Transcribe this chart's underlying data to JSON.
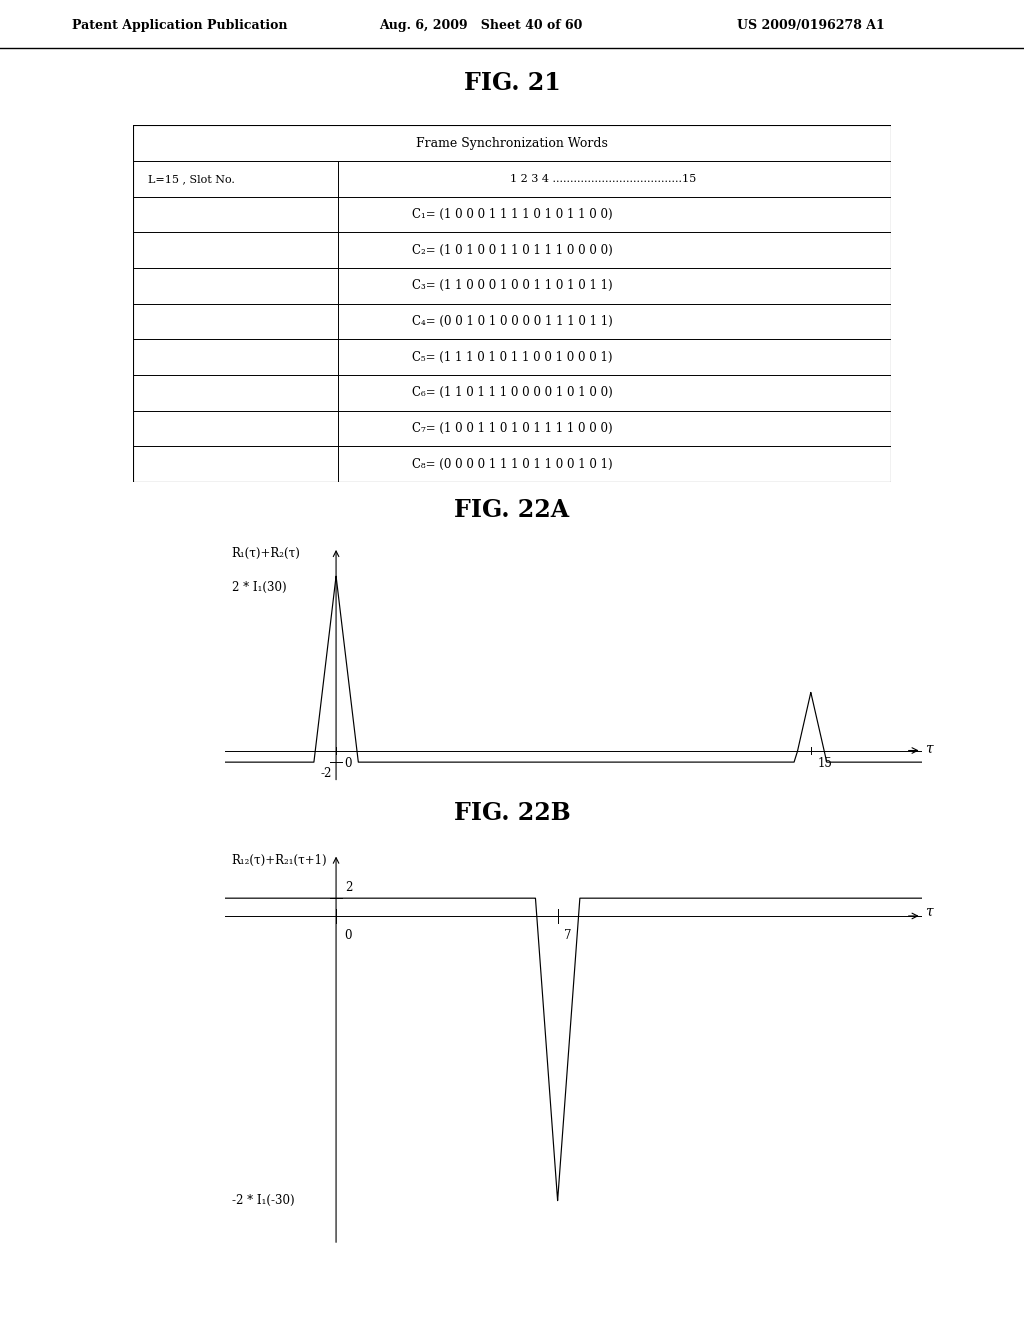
{
  "fig_title_21": "FIG. 21",
  "fig_title_22a": "FIG. 22A",
  "fig_title_22b": "FIG. 22B",
  "header_text": "Patent Application Publication",
  "header_date": "Aug. 6, 2009   Sheet 40 of 60",
  "header_patent": "US 2009/0196278 A1",
  "table_header": "Frame Synchronization Words",
  "table_col_header": "L=15 , Slot No.",
  "table_col_slots": "1 2 3 4 .....................................15",
  "table_rows": [
    "C1= (1 0 0 0 1 1 1 1 0 1 0 1 1 0 0)",
    "C2= (1 0 1 0 0 1 1 0 1 1 1 0 0 0 0)",
    "C3= (1 1 0 0 0 1 0 0 1 1 0 1 0 1 1)",
    "C4= (0 0 1 0 1 0 0 0 0 1 1 1 0 1 1)",
    "C5= (1 1 1 0 1 0 1 1 0 0 1 0 0 0 1)",
    "C6= (1 1 0 1 1 1 0 0 0 0 1 0 1 0 0)",
    "C7= (1 0 0 1 1 0 1 0 1 1 1 1 0 0 0)",
    "C8= (0 0 0 0 1 1 1 0 1 1 0 0 1 0 1)"
  ],
  "table_row_prefixes": [
    "C₁",
    "C₂",
    "C₃",
    "C₄",
    "C₅",
    "C₆",
    "C₇",
    "C₈"
  ],
  "table_row_contents": [
    "(1 0 0 0 1 1 1 1 0 1 0 1 1 0 0)",
    "(1 0 1 0 0 1 1 0 1 1 1 0 0 0 0)",
    "(1 1 0 0 0 1 0 0 1 1 0 1 0 1 1)",
    "(0 0 1 0 1 0 0 0 0 1 1 1 0 1 1)",
    "(1 1 1 0 1 0 1 1 0 0 1 0 0 0 1)",
    "(1 1 0 1 1 1 0 0 0 0 1 0 1 0 0)",
    "(1 0 0 1 1 0 1 0 1 1 1 1 0 0 0)",
    "(0 0 0 0 1 1 1 0 1 1 0 0 1 0 1)"
  ],
  "background_color": "#ffffff",
  "line_color": "#000000",
  "fig22a_ylabel": "R₁(τ)+R₂(τ)",
  "fig22a_xlabel": "τ",
  "fig22a_ytick_label": "2 * I₁(30)",
  "fig22a_ytick_neg": "-2",
  "fig22a_xtick_0": "0",
  "fig22a_xtick_15": "15",
  "fig22b_ylabel": "R₁₂(τ)+R₂₁(τ+1)",
  "fig22b_xlabel": "τ",
  "fig22b_ytick_pos": "2",
  "fig22b_ytick_neg": "-2 * I₁(-30)",
  "fig22b_xtick_0": "0",
  "fig22b_xtick_7": "7"
}
